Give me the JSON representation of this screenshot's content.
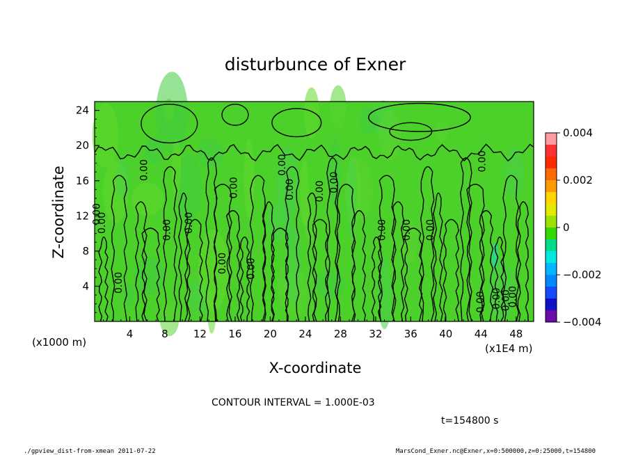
{
  "chart_data": {
    "type": "heatmap",
    "title": "disturbunce of Exner",
    "xlabel": "X-coordinate",
    "ylabel": "Z-coordinate",
    "x_unit_note": "(x1E4 m)",
    "y_unit_note": "(x1000 m)",
    "x_ticks": [
      "4",
      "8",
      "12",
      "16",
      "20",
      "24",
      "28",
      "32",
      "36",
      "40",
      "44",
      "48"
    ],
    "y_ticks": [
      "4",
      "8",
      "12",
      "16",
      "20",
      "24"
    ],
    "xlim": [
      0,
      50
    ],
    "ylim": [
      0,
      25
    ],
    "colorbar": {
      "ticks": [
        "0.004",
        "0.002",
        "0",
        "−0.002",
        "−0.004"
      ],
      "range": [
        -0.004,
        0.004
      ],
      "levels": [
        {
          "value": 0.0038,
          "color": "#ff9aa2"
        },
        {
          "value": 0.0033,
          "color": "#ff3030"
        },
        {
          "value": 0.0028,
          "color": "#ff2a00"
        },
        {
          "value": 0.0023,
          "color": "#ff6a00"
        },
        {
          "value": 0.0018,
          "color": "#ff9a00"
        },
        {
          "value": 0.0013,
          "color": "#ffd400"
        },
        {
          "value": 0.0008,
          "color": "#e2ea00"
        },
        {
          "value": 0.0003,
          "color": "#9be200"
        },
        {
          "value": -0.0003,
          "color": "#33d800"
        },
        {
          "value": -0.0008,
          "color": "#00dd88"
        },
        {
          "value": -0.0013,
          "color": "#00e8e0"
        },
        {
          "value": -0.0018,
          "color": "#00b8ff"
        },
        {
          "value": -0.0023,
          "color": "#0088ff"
        },
        {
          "value": -0.0028,
          "color": "#1548ff"
        },
        {
          "value": -0.0033,
          "color": "#1010c8"
        },
        {
          "value": -0.0038,
          "color": "#6a0aa8"
        }
      ]
    },
    "field_color": "#4cd02a",
    "contour_interval_text": "CONTOUR INTERVAL = 1.000E-03",
    "contour_labels": [
      "0.00",
      "0.00",
      "0.00",
      "0.00",
      "0.00",
      "0.00",
      "0.00",
      "0.00",
      "0.00",
      "0.00",
      "0.00",
      "0.00",
      "0.00",
      "0.00",
      "0.00",
      "0.00",
      "0.00",
      "0.00",
      "0.00",
      "0.00",
      "0.00"
    ],
    "time_text": "t=154800 s"
  },
  "footer": {
    "left": "./gpview_dist-from-xmean  2011-07-22",
    "right": "MarsCond_Exner.nc@Exner,x=0:500000,z=0:25000,t=154800"
  }
}
